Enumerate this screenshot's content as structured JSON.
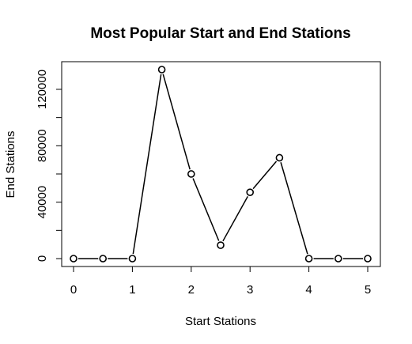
{
  "chart_data": {
    "type": "line",
    "title": "Most Popular Start and End Stations",
    "xlabel": "Start Stations",
    "ylabel": "End Stations",
    "x": [
      0,
      0.5,
      1,
      1.5,
      2,
      2.5,
      3,
      3.5,
      4,
      4.5,
      5
    ],
    "values": [
      0,
      0,
      0,
      134000,
      60000,
      9500,
      47000,
      71500,
      0,
      0,
      0
    ],
    "xlim": [
      0,
      5
    ],
    "ylim": [
      0,
      134000
    ],
    "xticks": [
      0,
      1,
      2,
      3,
      4,
      5
    ],
    "xtick_labels": [
      "0",
      "1",
      "2",
      "3",
      "4",
      "5"
    ],
    "yticks": [
      0,
      20000,
      40000,
      60000,
      80000,
      100000,
      120000
    ],
    "ytick_labels": [
      "0",
      "",
      "40000",
      "",
      "80000",
      "",
      "120000"
    ],
    "grid": false,
    "marker": "open-circle",
    "line_color": "#000000"
  }
}
